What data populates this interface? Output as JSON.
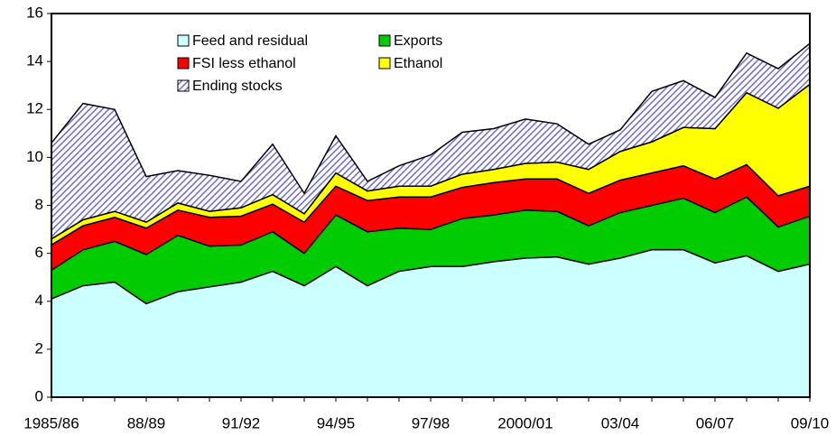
{
  "chart_data": {
    "type": "stacked-area",
    "categories": [
      "1985/86",
      null,
      null,
      "88/89",
      null,
      null,
      "91/92",
      null,
      null,
      "94/95",
      null,
      null,
      "97/98",
      null,
      null,
      "2000/01",
      null,
      null,
      "03/04",
      null,
      null,
      "06/07",
      null,
      null,
      "09/10"
    ],
    "series": [
      {
        "name": "Feed and residual",
        "color": "#ccffff",
        "values": [
          4.1,
          4.65,
          4.8,
          3.9,
          4.4,
          4.6,
          4.8,
          5.25,
          4.65,
          5.45,
          4.65,
          5.25,
          5.45,
          5.45,
          5.65,
          5.8,
          5.85,
          5.55,
          5.8,
          6.15,
          6.15,
          5.6,
          5.9,
          5.25,
          5.55
        ]
      },
      {
        "name": "Exports",
        "color": "#00cc00",
        "values": [
          1.2,
          1.5,
          1.7,
          2.05,
          2.35,
          1.7,
          1.55,
          1.65,
          1.35,
          2.15,
          2.25,
          1.8,
          1.55,
          2.0,
          1.95,
          2.0,
          1.9,
          1.6,
          1.9,
          1.85,
          2.15,
          2.1,
          2.45,
          1.85,
          2.0
        ]
      },
      {
        "name": "FSI less ethanol",
        "color": "#ff0000",
        "values": [
          1.05,
          1.0,
          1.0,
          1.1,
          1.05,
          1.2,
          1.2,
          1.15,
          1.3,
          1.2,
          1.3,
          1.3,
          1.35,
          1.3,
          1.35,
          1.3,
          1.35,
          1.35,
          1.35,
          1.35,
          1.35,
          1.4,
          1.35,
          1.3,
          1.25
        ]
      },
      {
        "name": "Ethanol",
        "color": "#ffff00",
        "values": [
          0.25,
          0.25,
          0.25,
          0.25,
          0.3,
          0.25,
          0.35,
          0.4,
          0.35,
          0.55,
          0.4,
          0.45,
          0.45,
          0.55,
          0.55,
          0.65,
          0.7,
          1.0,
          1.2,
          1.3,
          1.6,
          2.1,
          3.0,
          3.65,
          4.25
        ]
      },
      {
        "name": "Ending stocks",
        "color": "#6b6bd6",
        "pattern": "hatch",
        "values": [
          4.0,
          4.85,
          4.25,
          1.9,
          1.35,
          1.5,
          1.1,
          2.1,
          0.85,
          1.55,
          0.4,
          0.85,
          1.3,
          1.75,
          1.7,
          1.85,
          1.6,
          1.05,
          0.9,
          2.1,
          1.95,
          1.3,
          1.65,
          1.65,
          1.7
        ]
      }
    ],
    "ylim": [
      0,
      16
    ],
    "yticks": [
      0,
      2,
      4,
      6,
      8,
      10,
      12,
      14,
      16
    ],
    "grid": false,
    "legend": "top"
  }
}
